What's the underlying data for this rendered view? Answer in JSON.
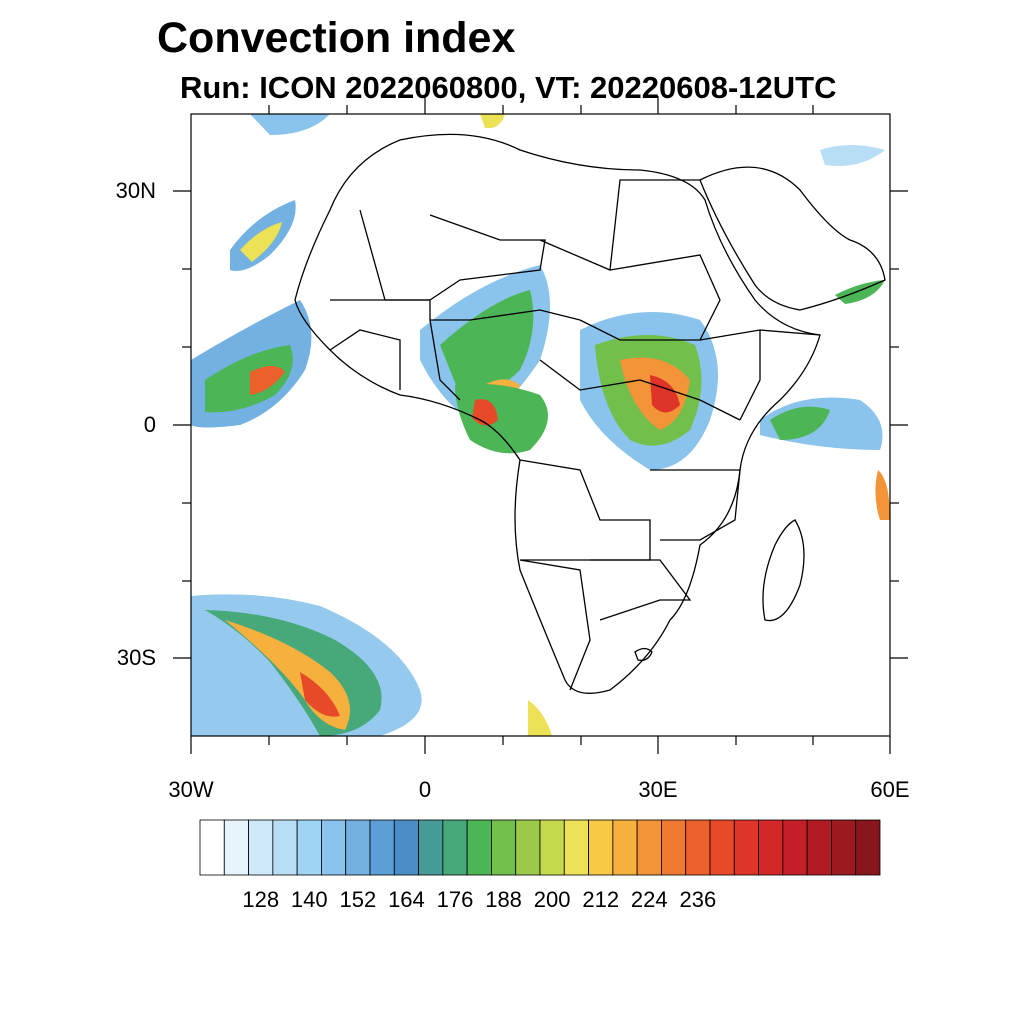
{
  "title": "Convection index",
  "subtitle": "Run: ICON 2022060800,  VT: 20220608-12UTC",
  "map": {
    "lon_range": [
      -30,
      60
    ],
    "lat_range": [
      -40,
      40
    ],
    "y_tick_labels": [
      "30N",
      "0",
      "30S"
    ],
    "x_tick_labels": [
      "30W",
      "0",
      "30E",
      "60E"
    ]
  },
  "colorbar": {
    "tick_labels": [
      "128",
      "140",
      "152",
      "164",
      "176",
      "188",
      "200",
      "212",
      "224",
      "236"
    ],
    "colors": [
      "#ffffff",
      "#e8f4fc",
      "#cfe9f8",
      "#b8def6",
      "#a0d4f5",
      "#8ac4ec",
      "#72b1e2",
      "#5c9ed6",
      "#4a8ec7",
      "#479c9a",
      "#47a87a",
      "#4cb555",
      "#72bf4c",
      "#9ccb4a",
      "#c6d84b",
      "#ede156",
      "#f8c945",
      "#f6b03d",
      "#f39438",
      "#f07a32",
      "#ec602c",
      "#e64a29",
      "#de3528",
      "#d42728",
      "#c41e26",
      "#b01b24",
      "#9c1920",
      "#88161c"
    ]
  }
}
